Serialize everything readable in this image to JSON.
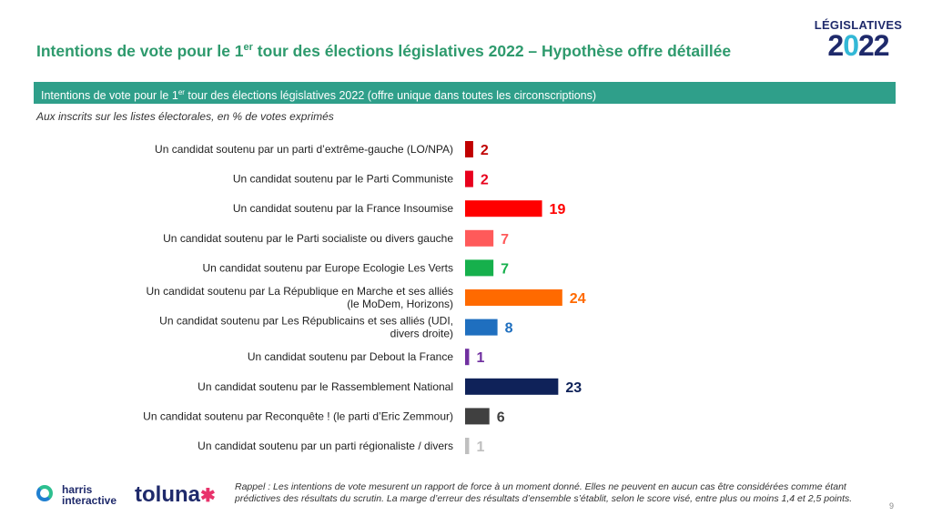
{
  "header": {
    "title_pre": "Intentions de vote pour le 1",
    "title_sup": "er",
    "title_post": " tour des élections législatives 2022 – Hypothèse offre détaillée"
  },
  "logo": {
    "top": "LÉGISLATIVES",
    "year_a": "2",
    "year_o": "0",
    "year_b": "22"
  },
  "banner": {
    "pre": "Intentions  de vote pour le 1",
    "sup": "er",
    "post": " tour des élections législatives 2022 (offre unique dans toutes les circonscriptions)"
  },
  "subtitle": "Aux inscrits sur les listes électorales, en % de votes exprimés",
  "chart_data": {
    "type": "bar",
    "orientation": "horizontal",
    "categories": [
      [
        "Un candidat soutenu par un parti d’extrême-gauche (LO/NPA)"
      ],
      [
        "Un candidat soutenu par le Parti Communiste"
      ],
      [
        "Un candidat soutenu par la France Insoumise"
      ],
      [
        "Un candidat soutenu par le Parti socialiste ou divers gauche"
      ],
      [
        "Un candidat soutenu par Europe Ecologie Les Verts"
      ],
      [
        "Un candidat soutenu par La République en Marche et ses alliés",
        "(le MoDem, Horizons)"
      ],
      [
        "Un candidat soutenu par Les Républicains et ses alliés (UDI,",
        "divers droite)"
      ],
      [
        "Un candidat soutenu par Debout la France"
      ],
      [
        "Un candidat soutenu par le Rassemblement National"
      ],
      [
        "Un candidat soutenu par Reconquête ! (le parti d’Eric Zemmour)"
      ],
      [
        "Un candidat soutenu par un parti régionaliste / divers"
      ]
    ],
    "values": [
      2,
      2,
      19,
      7,
      7,
      24,
      8,
      1,
      23,
      6,
      1
    ],
    "colors": [
      "#c00000",
      "#e8001c",
      "#ff0000",
      "#ff5a5a",
      "#16b04c",
      "#ff6a00",
      "#1f6fbf",
      "#7030a0",
      "#0f2259",
      "#404040",
      "#bfbfbf"
    ],
    "xlim": [
      0,
      24
    ]
  },
  "footer": {
    "note": "Rappel : Les intentions de vote mesurent un rapport de force à un moment donné. Elles ne peuvent en aucun cas être considérées comme étant prédictives des résultats du scrutin. La marge d’erreur des résultats d’ensemble s’établit, selon le score visé, entre plus ou moins 1,4 et 2,5 points.",
    "page": "9",
    "brand1_line1": "harris",
    "brand1_line2": "interactive",
    "brand2": "toluna"
  }
}
